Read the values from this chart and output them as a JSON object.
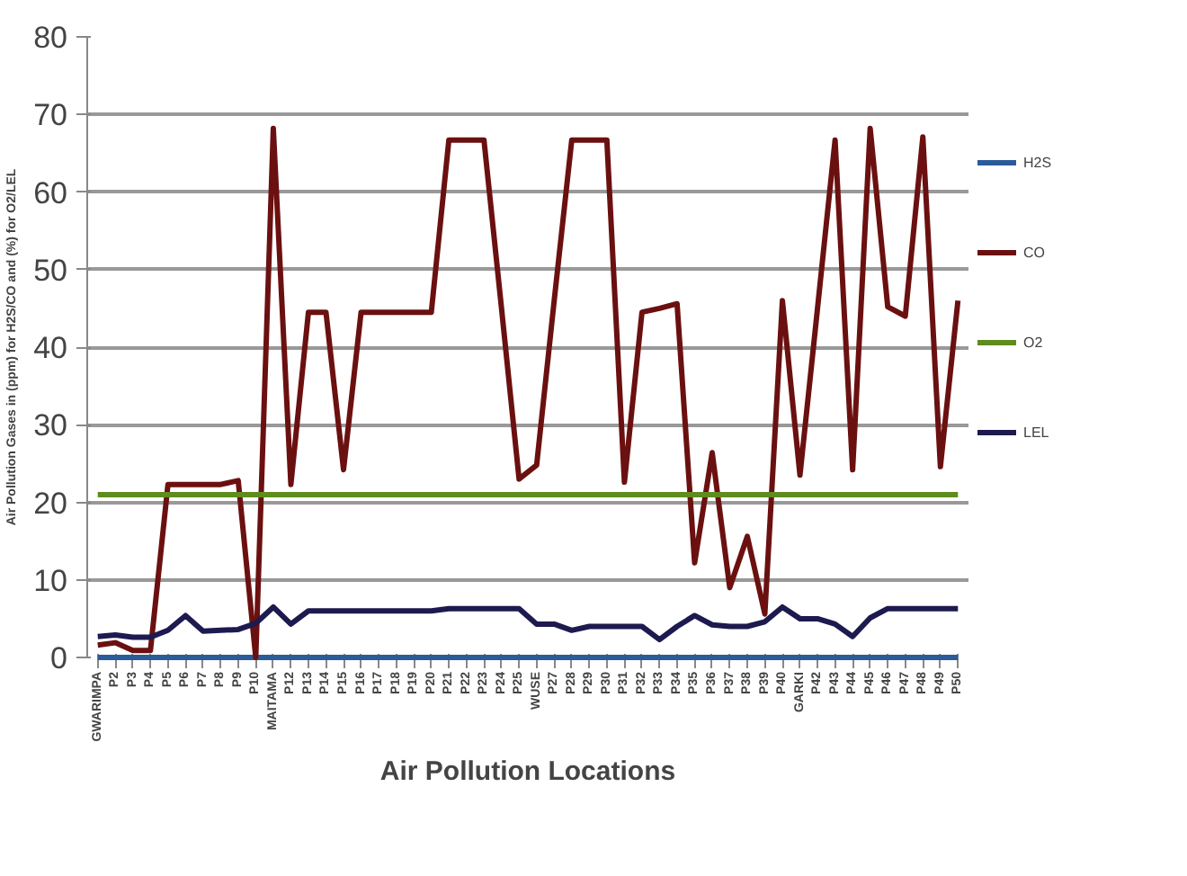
{
  "chart_data": {
    "type": "line",
    "ylabel": "Air Pollution Gases in (ppm) for H2S/CO and (%) for O2/LEL",
    "xlabel": "Air Pollution Locations",
    "categories": [
      "GWARIMPA",
      "P2",
      "P3",
      "P4",
      "P5",
      "P6",
      "P7",
      "P8",
      "P9",
      "P10",
      "MAITAMA",
      "P12",
      "P13",
      "P14",
      "P15",
      "P16",
      "P17",
      "P18",
      "P19",
      "P20",
      "P21",
      "P22",
      "P23",
      "P24",
      "P25",
      "WUSE",
      "P27",
      "P28",
      "P29",
      "P30",
      "P31",
      "P32",
      "P33",
      "P34",
      "P35",
      "P36",
      "P37",
      "P38",
      "P39",
      "P40",
      "GARKI",
      "P42",
      "P43",
      "P44",
      "P45",
      "P46",
      "P47",
      "P48",
      "P49",
      "P50"
    ],
    "series": [
      {
        "name": "H2S",
        "color": "#2a5b9a",
        "values": [
          0,
          0,
          0,
          0,
          0,
          0,
          0,
          0,
          0,
          0,
          0,
          0,
          0,
          0,
          0,
          0,
          0,
          0,
          0,
          0,
          0,
          0,
          0,
          0,
          0,
          0,
          0,
          0,
          0,
          0,
          0,
          0,
          0,
          0,
          0,
          0,
          0,
          0,
          0,
          0,
          0,
          0,
          0,
          0,
          0,
          0,
          0,
          0,
          0,
          0
        ]
      },
      {
        "name": "CO",
        "color": "#6b1010",
        "values": [
          1.6,
          1.9,
          0.9,
          0.9,
          22.3,
          22.3,
          22.3,
          22.3,
          22.8,
          0,
          68.2,
          22.3,
          44.5,
          44.5,
          24.2,
          44.5,
          44.5,
          44.5,
          44.5,
          44.5,
          66.7,
          66.7,
          66.7,
          45,
          23,
          24.8,
          46,
          66.7,
          66.7,
          66.7,
          22.6,
          44.5,
          45,
          45.6,
          12.2,
          26.4,
          9,
          15.6,
          5.6,
          46,
          23.5,
          45,
          66.7,
          24.2,
          68.2,
          45.2,
          44,
          67.1,
          24.6,
          46
        ]
      },
      {
        "name": "O2",
        "color": "#5e8c1e",
        "values": [
          21,
          21,
          21,
          21,
          21,
          21,
          21,
          21,
          21,
          21,
          21,
          21,
          21,
          21,
          21,
          21,
          21,
          21,
          21,
          21,
          21,
          21,
          21,
          21,
          21,
          21,
          21,
          21,
          21,
          21,
          21,
          21,
          21,
          21,
          21,
          21,
          21,
          21,
          21,
          21,
          21,
          21,
          21,
          21,
          21,
          21,
          21,
          21,
          21,
          21
        ]
      },
      {
        "name": "LEL",
        "color": "#1c1a4e",
        "values": [
          2.7,
          2.9,
          2.6,
          2.6,
          3.5,
          5.4,
          3.4,
          3.5,
          3.6,
          4.4,
          6.5,
          4.3,
          6,
          6,
          6,
          6,
          6,
          6,
          6,
          6,
          6.3,
          6.3,
          6.3,
          6.3,
          6.3,
          4.3,
          4.3,
          3.5,
          4,
          4,
          4,
          4,
          2.3,
          4,
          5.4,
          4.2,
          4,
          4,
          4.6,
          6.5,
          5,
          5,
          4.3,
          2.7,
          5.1,
          6.3,
          6.3,
          6.3,
          6.3,
          6.3
        ]
      }
    ],
    "ylim": [
      0,
      80
    ],
    "yticks": [
      0,
      10,
      20,
      30,
      40,
      50,
      60,
      70,
      80
    ],
    "grid": "y",
    "legend": "right",
    "marker": "none",
    "line_style": "solid"
  }
}
